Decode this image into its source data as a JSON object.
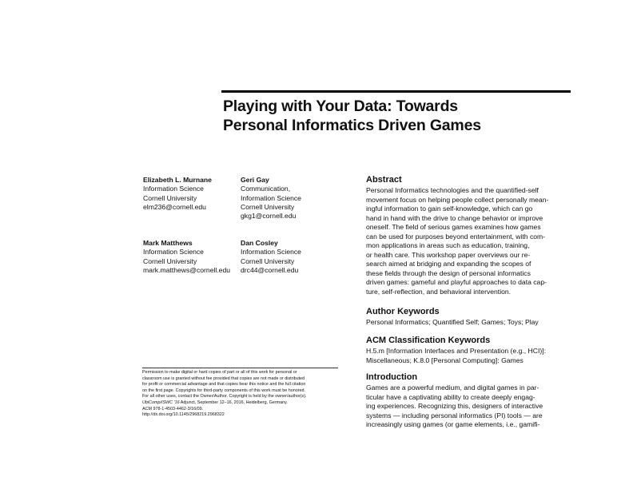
{
  "title": {
    "line1": "Playing with Your Data: Towards",
    "line2": "Personal Informatics Driven Games"
  },
  "authors": [
    {
      "name": "Elizabeth L. Murnane",
      "lines": [
        "Information Science",
        "Cornell University",
        "elm236@cornell.edu"
      ]
    },
    {
      "name": "Geri Gay",
      "lines": [
        "Communication,",
        "Information Science",
        "Cornell University",
        "gkg1@cornell.edu"
      ]
    },
    {
      "name": "Mark Matthews",
      "lines": [
        "Information Science",
        "Cornell University",
        "mark.matthews@cornell.edu"
      ]
    },
    {
      "name": "Dan Cosley",
      "lines": [
        "Information Science",
        "Cornell University",
        "drc44@cornell.edu"
      ]
    }
  ],
  "permission": {
    "lines": [
      "Permission to make digital or hard copies of part or all of this work for personal or",
      "classroom use is granted without fee provided that copies are not made or distributed",
      "for profit or commercial advantage and that copies bear this notice and the full citation",
      "on the first page. Copyrights for third-party components of this work must be honored.",
      "For all other uses, contact the Owner/Author. Copyright is held by the owner/author(s)."
    ],
    "venue_italic": "UbiComp/ISWC '16",
    "venue_rest": " Adjunct, September 12–16, 2016, Heidelberg, Germany.",
    "acm": "ACM 978-1-4503-4462-3/16/09.",
    "doi": "http://dx.doi.org/10.1145/2968219.2968322"
  },
  "abstract": {
    "heading": "Abstract",
    "lines": [
      "Personal Informatics technologies and the quantified-self",
      "movement focus on helping people collect personally mean-",
      "ingful information to gain self-knowledge, which can go",
      "hand in hand with the drive to change behavior or improve",
      "oneself. The field of serious games examines how games",
      "can be used for purposes beyond entertainment, with com-",
      "mon applications in areas such as education, training,",
      "or health care. This workshop paper overviews our re-",
      "search aimed at bridging and expanding the scopes of",
      "these fields through the design of personal informatics",
      "driven games: gameful and playful approaches to data cap-",
      "ture, self-reflection, and behavioral intervention."
    ]
  },
  "author_keywords": {
    "heading": "Author Keywords",
    "lines": [
      "Personal Informatics; Quantified Self; Games; Toys; Play"
    ]
  },
  "acm_keywords": {
    "heading": "ACM Classification Keywords",
    "lines": [
      "H.5.m [Information Interfaces and Presentation (e.g., HCI)]:",
      "Miscellaneous; K.8.0 [Personal Computing]: Games"
    ]
  },
  "introduction": {
    "heading": "Introduction",
    "lines": [
      "Games are a powerful medium, and digital games in par-",
      "ticular have a captivating ability to create deeply engag-",
      "ing experiences. Recognizing this, designers of interactive",
      "systems — including personal informatics (PI) tools — are",
      "increasingly using games (or game elements, i.e., gamifi-"
    ]
  }
}
